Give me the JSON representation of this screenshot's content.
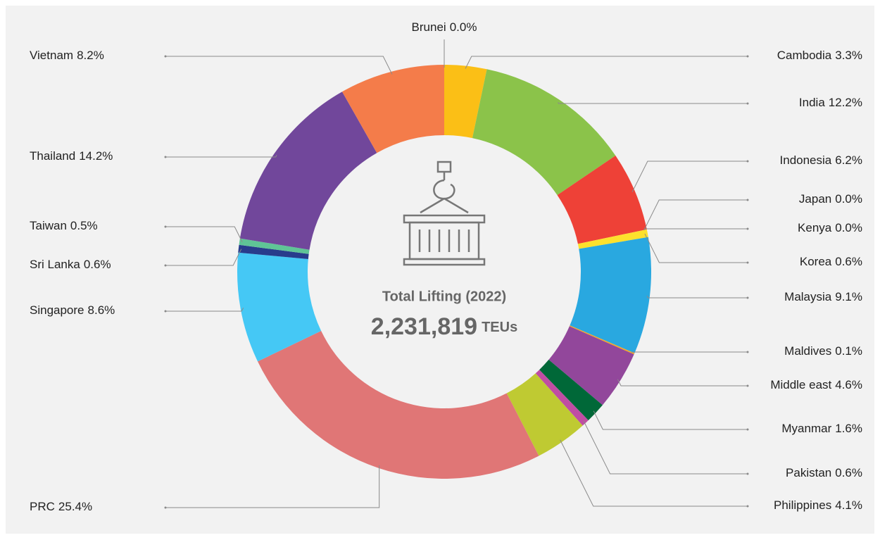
{
  "chart_data": {
    "type": "donut",
    "center_title": "Total Lifting (2022)",
    "center_total": "2,231,819",
    "center_unit": "TEUs",
    "categories": [
      "Brunei",
      "Cambodia",
      "India",
      "Indonesia",
      "Japan",
      "Kenya",
      "Korea",
      "Malaysia",
      "Maldives",
      "Middle east",
      "Myanmar",
      "Pakistan",
      "Philippines",
      "PRC",
      "Singapore",
      "Sri Lanka",
      "Taiwan",
      "Thailand",
      "Vietnam"
    ],
    "values": [
      0,
      3.3,
      12.2,
      6.2,
      0,
      0,
      0.6,
      9.1,
      0.1,
      4.6,
      1.6,
      0.6,
      4.1,
      25.4,
      8.6,
      0.6,
      0.5,
      14.2,
      8.2
    ],
    "value_labels": [
      "0.0%",
      "3.3%",
      "12.2%",
      "6.2%",
      "0.0%",
      "0.0%",
      "0.6%",
      "9.1%",
      "0.1%",
      "4.6%",
      "1.6%",
      "0.6%",
      "4.1%",
      "25.4%",
      "8.6%",
      "0.6%",
      "0.5%",
      "14.2%",
      "8.2%"
    ],
    "colors": [
      "#9e9e9e",
      "#fbbf16",
      "#8bc34a",
      "#ee4137",
      "#bdbdbd",
      "#bdbdbd",
      "#fde12d",
      "#29a8e0",
      "#f5a623",
      "#92479b",
      "#006838",
      "#c04da3",
      "#bfca32",
      "#e07676",
      "#45c8f5",
      "#283c8c",
      "#5fc496",
      "#71479b",
      "#f47c4a"
    ]
  }
}
